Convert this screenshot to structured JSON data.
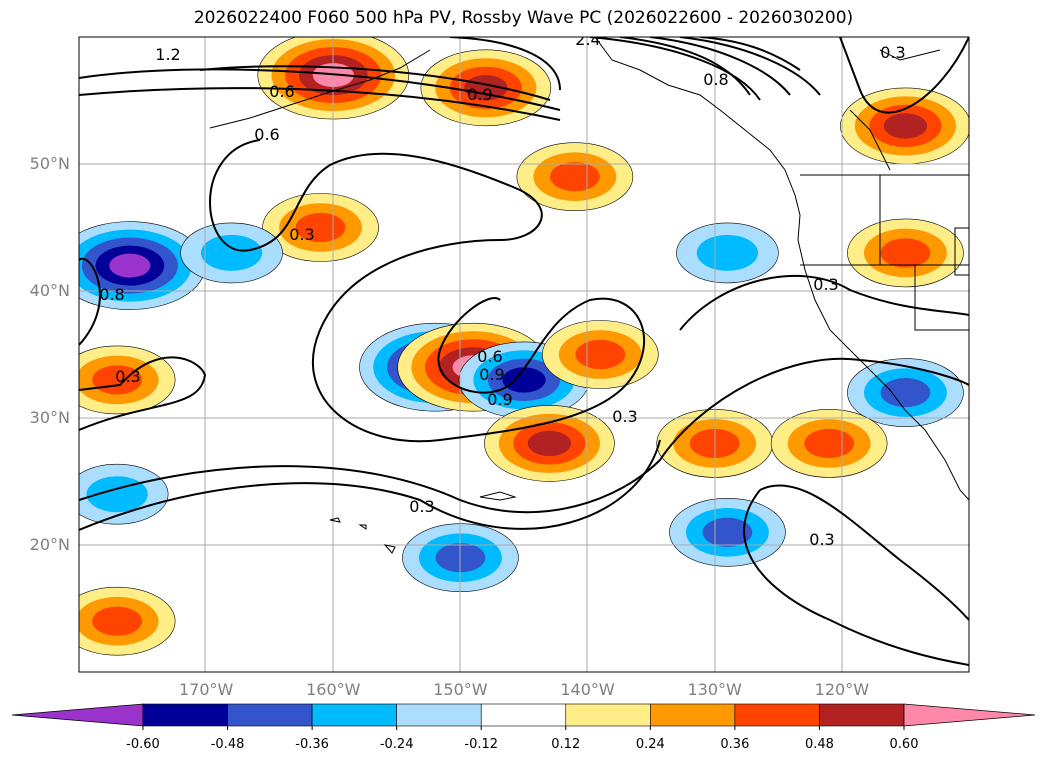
{
  "title": "2026022400 F060 500 hPa PV, Rossby Wave PC (2026022600 - 2026030200)",
  "latitude_labels": [
    "50°N",
    "40°N",
    "30°N",
    "20°N"
  ],
  "longitude_labels": [
    "170°W",
    "160°W",
    "150°W",
    "140°W",
    "130°W",
    "120°W"
  ],
  "contour_labels": [
    "1.2",
    "2.4",
    "0.3",
    "0.6",
    "0.9",
    "0.6",
    "0.3",
    "0.3",
    "0.6",
    "0.9",
    "0.9",
    "0.3",
    "0.3",
    "0.3",
    "0.3",
    "0.8",
    "0.8"
  ],
  "colorbar": {
    "ticks": [
      "-0.60",
      "-0.48",
      "-0.36",
      "-0.24",
      "-0.12",
      "0.12",
      "0.24",
      "0.36",
      "0.48",
      "0.60"
    ],
    "colors": [
      "#9933cc",
      "#000099",
      "#3355cc",
      "#00bbff",
      "#aaddff",
      "#ffffff",
      "#ffee88",
      "#ff9900",
      "#ff4400",
      "#b22222",
      "#ff88aa"
    ]
  },
  "chart_data": {
    "type": "map",
    "title": "2026022400 F060 500 hPa PV, Rossby Wave PC (2026022600 - 2026030200)",
    "region": {
      "lon_range": [
        -180,
        -110
      ],
      "lat_range": [
        10,
        60
      ]
    },
    "contour_variable": "500 hPa PV",
    "shaded_variable": "Rossby Wave PC",
    "shading_levels": [
      -0.6,
      -0.48,
      -0.36,
      -0.24,
      -0.12,
      0.12,
      0.24,
      0.36,
      0.48,
      0.6
    ],
    "contour_levels": [
      0.3,
      0.6,
      0.9,
      1.2,
      2.4
    ],
    "anomalies": [
      {
        "sign": "positive",
        "value": 0.65,
        "lon": -160,
        "lat": 57
      },
      {
        "sign": "positive",
        "value": 0.5,
        "lon": -148,
        "lat": 56
      },
      {
        "sign": "positive",
        "value": 0.4,
        "lon": -141,
        "lat": 49
      },
      {
        "sign": "negative",
        "value": -0.65,
        "lon": -176,
        "lat": 42
      },
      {
        "sign": "negative",
        "value": -0.65,
        "lon": -152,
        "lat": 34
      },
      {
        "sign": "positive",
        "value": 0.65,
        "lon": -149,
        "lat": 34
      },
      {
        "sign": "negative",
        "value": -0.5,
        "lon": -145,
        "lat": 33
      },
      {
        "sign": "positive",
        "value": 0.5,
        "lon": -143,
        "lat": 28
      },
      {
        "sign": "positive",
        "value": 0.4,
        "lon": -139,
        "lat": 35
      },
      {
        "sign": "positive",
        "value": 0.4,
        "lon": -130,
        "lat": 28
      },
      {
        "sign": "negative",
        "value": -0.4,
        "lon": -129,
        "lat": 21
      },
      {
        "sign": "negative",
        "value": -0.4,
        "lon": -150,
        "lat": 19
      },
      {
        "sign": "negative",
        "value": -0.3,
        "lon": -129,
        "lat": 43
      },
      {
        "sign": "positive",
        "value": 0.5,
        "lon": -115,
        "lat": 53
      },
      {
        "sign": "positive",
        "value": 0.4,
        "lon": -115,
        "lat": 43
      },
      {
        "sign": "negative",
        "value": -0.4,
        "lon": -115,
        "lat": 32
      },
      {
        "sign": "positive",
        "value": 0.4,
        "lon": -121,
        "lat": 28
      },
      {
        "sign": "positive",
        "value": 0.4,
        "lon": -177,
        "lat": 33
      },
      {
        "sign": "negative",
        "value": -0.3,
        "lon": -177,
        "lat": 24
      },
      {
        "sign": "positive",
        "value": 0.4,
        "lon": -177,
        "lat": 14
      },
      {
        "sign": "positive",
        "value": 0.4,
        "lon": -161,
        "lat": 45
      },
      {
        "sign": "negative",
        "value": -0.3,
        "lon": -168,
        "lat": 43
      }
    ]
  }
}
